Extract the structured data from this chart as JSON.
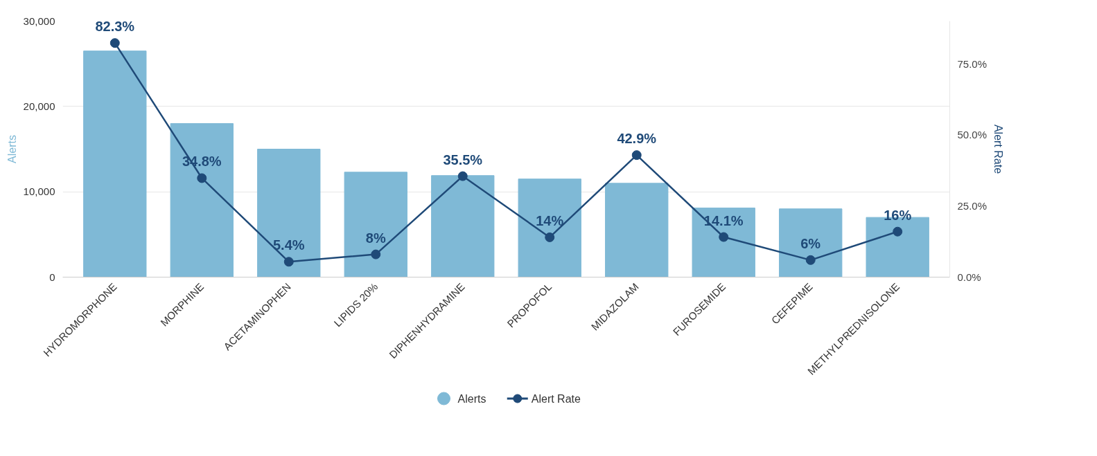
{
  "chart_data": {
    "type": "bar",
    "categories": [
      "HYDROMORPHONE",
      "MORPHINE",
      "ACETAMINOPHEN",
      "LIPIDS 20%",
      "DIPHENHYDRAMINE",
      "PROPOFOL",
      "MIDAZOLAM",
      "FUROSEMIDE",
      "CEFEPIME",
      "METHYLPREDNISOLONE"
    ],
    "ylabel": "Alerts",
    "y2label": "Alert Rate",
    "series": [
      {
        "name": "Alerts",
        "color": "#7fb9d6",
        "values": [
          26500,
          18000,
          15000,
          12300,
          11900,
          11500,
          11000,
          8100,
          8000,
          7000
        ]
      },
      {
        "name": "Alert Rate",
        "type": "line",
        "axis": "y2",
        "color": "#1f4a78",
        "values": [
          82.3,
          34.8,
          5.4,
          8,
          35.5,
          14,
          42.9,
          14.1,
          6,
          16
        ],
        "value_labels": [
          "82.3%",
          "34.8%",
          "5.4%",
          "8%",
          "35.5%",
          "14%",
          "42.9%",
          "14.1%",
          "6%",
          "16%"
        ]
      }
    ],
    "ylim": [
      0,
      30000
    ],
    "yticks": [
      0,
      {
        "value": 10000,
        "label": "10,000"
      },
      {
        "value": 20000,
        "label": "20,000"
      },
      {
        "value": 30000,
        "label": "30,000"
      }
    ],
    "y2lim": [
      0,
      90
    ],
    "y2ticks": [
      {
        "value": 0,
        "label": "0.0%"
      },
      {
        "value": 25,
        "label": "25.0%"
      },
      {
        "value": 50,
        "label": "50.0%"
      },
      {
        "value": 75,
        "label": "75.0%"
      }
    ],
    "grid": "y",
    "legend": "bottom",
    "marker": "circle",
    "line_style": "solid"
  }
}
